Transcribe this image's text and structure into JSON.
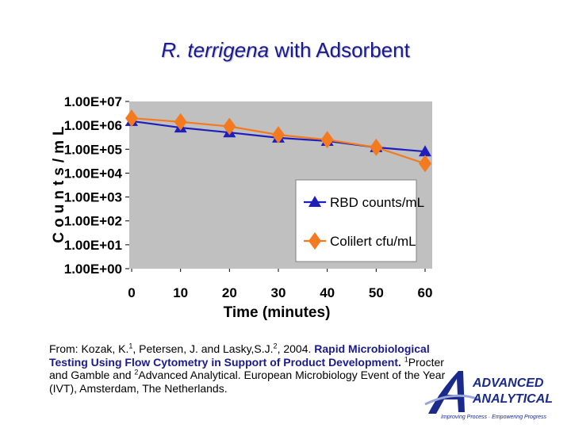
{
  "slide": {
    "title_species": "R. terrigena",
    "title_rest": " with Adsorbent"
  },
  "chart_data": {
    "type": "line",
    "x": [
      0,
      10,
      20,
      30,
      40,
      50,
      60
    ],
    "xlabel": "Time (minutes)",
    "ylabel": "Counts/mL",
    "yscale": "log",
    "ylim": [
      1,
      10000000
    ],
    "xlim": [
      0,
      60
    ],
    "x_tick_labels": [
      "0",
      "10",
      "20",
      "30",
      "40",
      "50",
      "60"
    ],
    "y_tick_labels": [
      "1.00E+00",
      "1.00E+01",
      "1.00E+02",
      "1.00E+03",
      "1.00E+04",
      "1.00E+05",
      "1.00E+06",
      "1.00E+07"
    ],
    "grid": false,
    "legend": "bottom-right",
    "series": [
      {
        "name": "RBD counts/mL",
        "marker": "triangle",
        "color": "#1e1ebe",
        "values": [
          1500000,
          800000,
          500000,
          300000,
          220000,
          120000,
          80000
        ]
      },
      {
        "name": "Colilert cfu/mL",
        "marker": "diamond",
        "color": "#f47a20",
        "values": [
          2000000,
          1400000,
          900000,
          400000,
          250000,
          120000,
          25000
        ]
      }
    ]
  },
  "citation": {
    "lead": "From: Kozak, K.",
    "sup1": "1",
    "mid": ", Petersen, J. and Lasky,S.J.",
    "sup2": "2",
    "year": ", 2004. ",
    "paper_title": "Rapid Microbiological Testing Using Flow Cytometry in Support of Product Development.",
    "sup3": "1",
    "affil1": "Procter and Gamble and ",
    "sup4": "2",
    "affil2": "Advanced Analytical.  European Microbiology Event of the Year (IVT), Amsterdam, The Netherlands."
  },
  "logo": {
    "line1": "ADVANCED",
    "line2": "ANALYTICAL",
    "tagline": "Improving Process · Empowering Progress",
    "color": "#1a2a8c"
  }
}
